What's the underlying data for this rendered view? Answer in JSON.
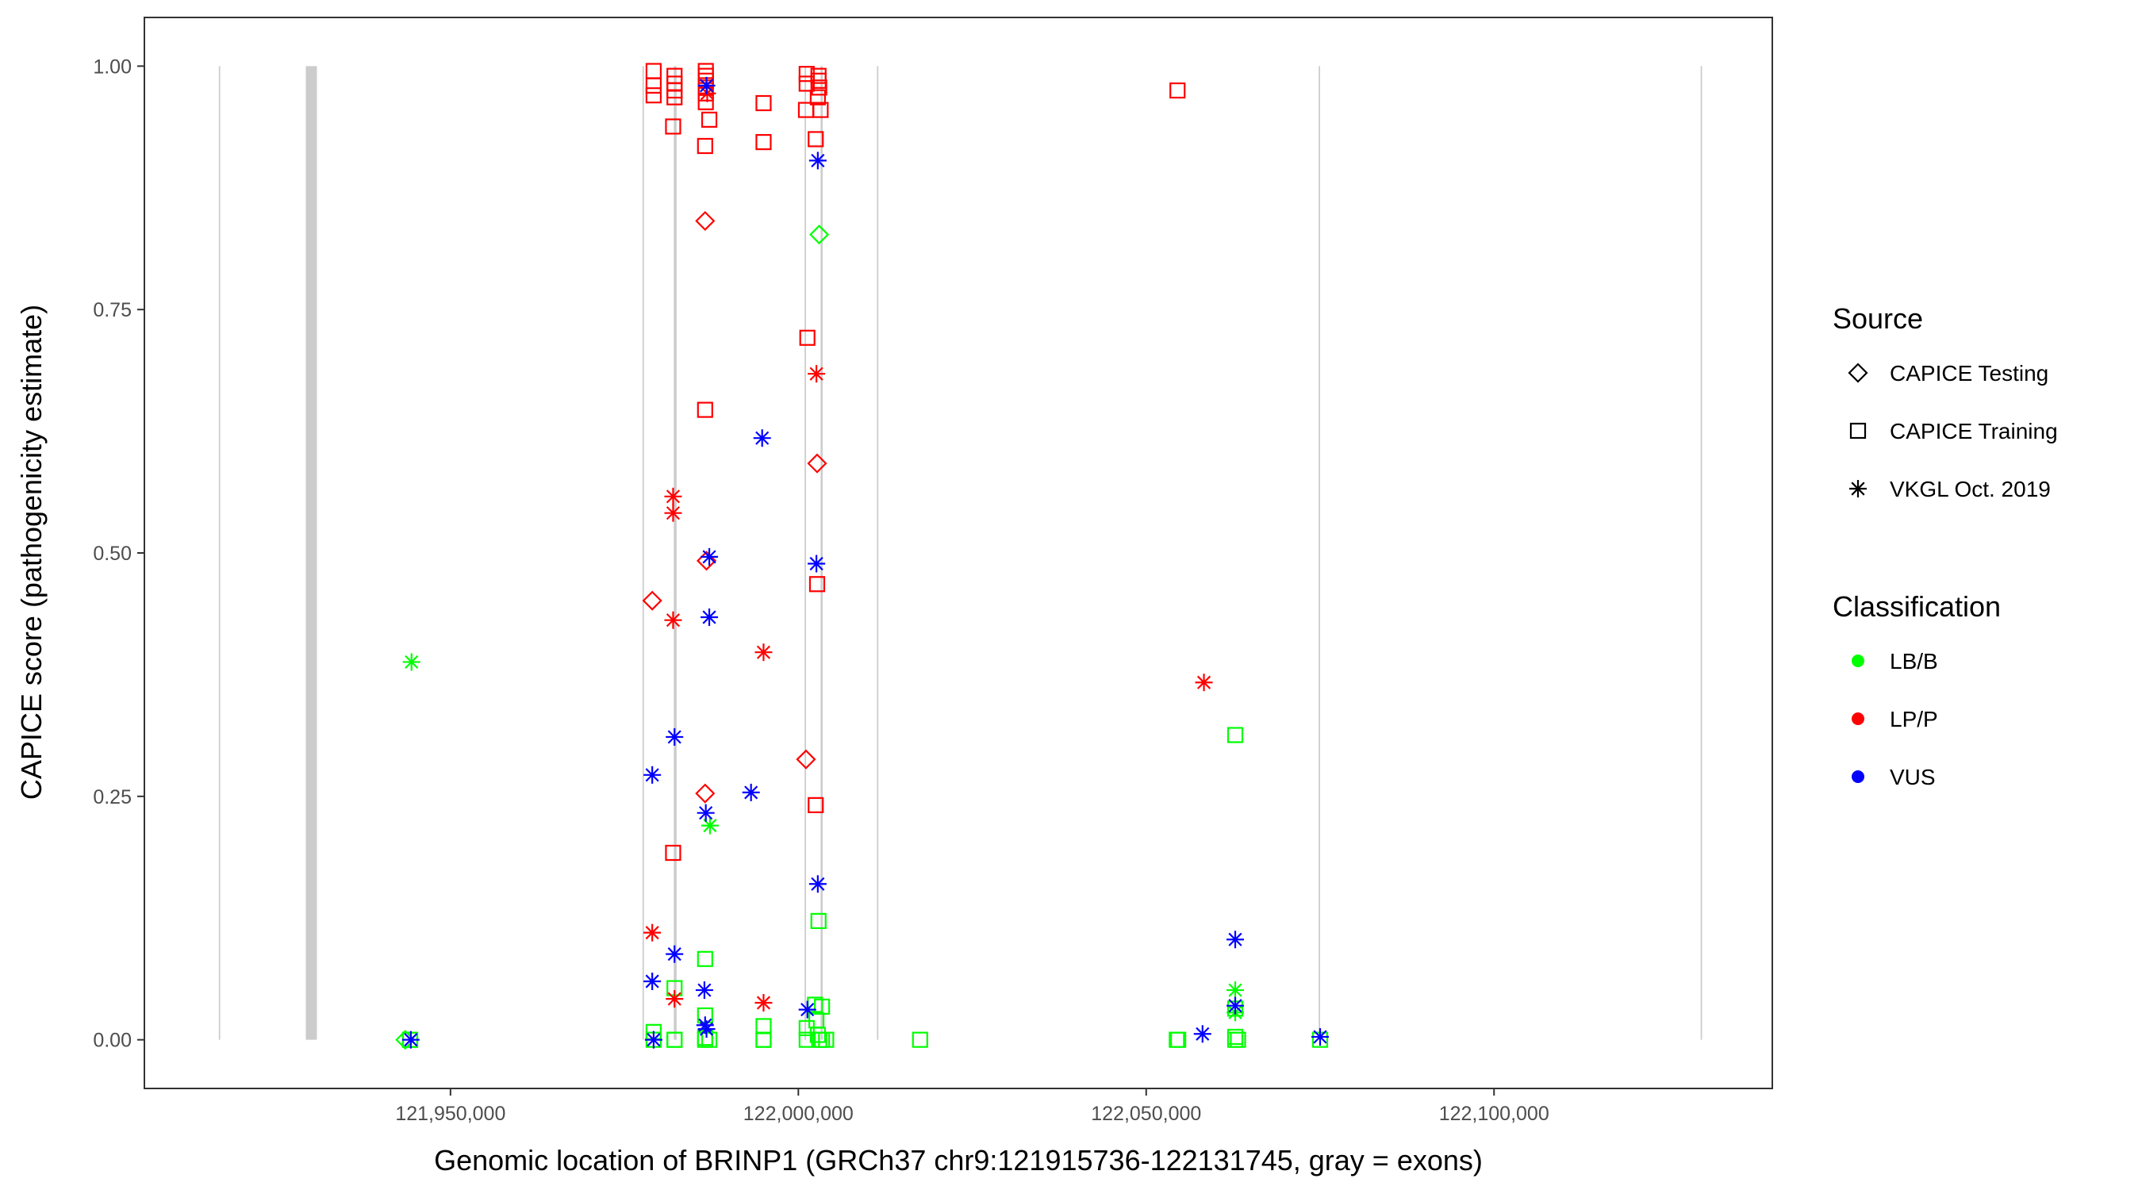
{
  "chart_data": {
    "type": "scatter",
    "xlabel": "Genomic location of BRINP1 (GRCh37 chr9:121915736-122131745, gray = exons)",
    "ylabel": "CAPICE score (pathogenicity estimate)",
    "xlim": [
      121906000,
      122140000
    ],
    "ylim": [
      -0.05,
      1.05
    ],
    "x_ticks": [
      121950000,
      122000000,
      122050000,
      122100000
    ],
    "x_tick_labels": [
      "121,950,000",
      "122,000,000",
      "122,050,000",
      "122,100,000"
    ],
    "y_ticks": [
      0,
      0.25,
      0.5,
      0.75,
      1.0
    ],
    "y_tick_labels": [
      "0.00",
      "0.25",
      "0.50",
      "0.75",
      "1.00"
    ],
    "grid": false,
    "exons": [
      {
        "start": 121916700,
        "end": 121916900
      },
      {
        "start": 121929200,
        "end": 121930800
      },
      {
        "start": 121977600,
        "end": 121977800
      },
      {
        "start": 121982100,
        "end": 121982500
      },
      {
        "start": 122000900,
        "end": 122001100
      },
      {
        "start": 122003200,
        "end": 122003500
      },
      {
        "start": 122011300,
        "end": 122011500
      },
      {
        "start": 122074800,
        "end": 122075000
      },
      {
        "start": 122129700,
        "end": 122129900
      }
    ],
    "legends": [
      {
        "title": "Source",
        "entries": [
          {
            "label": "CAPICE Testing",
            "shape": "diamond"
          },
          {
            "label": "CAPICE Training",
            "shape": "square"
          },
          {
            "label": "VKGL Oct. 2019",
            "shape": "asterisk"
          }
        ]
      },
      {
        "title": "Classification",
        "entries": [
          {
            "label": "LB/B",
            "color": "#00ff00"
          },
          {
            "label": "LP/P",
            "color": "#ff0000"
          },
          {
            "label": "VUS",
            "color": "#0000ff"
          }
        ]
      }
    ],
    "colors": {
      "LB/B": "#00ff00",
      "LP/P": "#ff0000",
      "VUS": "#0000ff",
      "exon": "#cccccc"
    },
    "series": [
      {
        "source": "CAPICE Training",
        "classification": "LP/P",
        "points": [
          [
            121979200,
            0.995
          ],
          [
            121979200,
            0.98
          ],
          [
            121979200,
            0.97
          ],
          [
            121982200,
            0.99
          ],
          [
            121982200,
            0.982
          ],
          [
            121982200,
            0.975
          ],
          [
            121982200,
            0.968
          ],
          [
            121982000,
            0.938
          ],
          [
            121982000,
            0.192
          ],
          [
            121986700,
            0.995
          ],
          [
            121986700,
            0.99
          ],
          [
            121986700,
            0.985
          ],
          [
            121986700,
            0.978
          ],
          [
            121986700,
            0.972
          ],
          [
            121986700,
            0.963
          ],
          [
            121987200,
            0.945
          ],
          [
            121986600,
            0.918
          ],
          [
            121986600,
            0.647
          ],
          [
            121995000,
            0.962
          ],
          [
            121995000,
            0.922
          ],
          [
            122001200,
            0.992
          ],
          [
            122001200,
            0.982
          ],
          [
            122001100,
            0.955
          ],
          [
            122001300,
            0.721
          ],
          [
            122002900,
            0.99
          ],
          [
            122002900,
            0.985
          ],
          [
            122003000,
            0.978
          ],
          [
            122002800,
            0.968
          ],
          [
            122003200,
            0.955
          ],
          [
            122002500,
            0.925
          ],
          [
            122002700,
            0.468
          ],
          [
            122002500,
            0.241
          ],
          [
            122054500,
            0.975
          ]
        ]
      },
      {
        "source": "CAPICE Training",
        "classification": "LB/B",
        "points": [
          [
            121944200,
            0.0
          ],
          [
            121944200,
            0.0
          ],
          [
            121979200,
            0.008
          ],
          [
            121979200,
            0.0
          ],
          [
            121982200,
            0.053
          ],
          [
            121982200,
            0.0
          ],
          [
            121982200,
            0.0
          ],
          [
            121986600,
            0.083
          ],
          [
            121986600,
            0.025
          ],
          [
            121986600,
            0.002
          ],
          [
            121986600,
            0.0
          ],
          [
            121987200,
            0.0
          ],
          [
            121995000,
            0.014
          ],
          [
            121995000,
            0.0
          ],
          [
            121995000,
            0.0
          ],
          [
            122001200,
            0.012
          ],
          [
            122001200,
            0.0
          ],
          [
            122002400,
            0.036
          ],
          [
            122003400,
            0.034
          ],
          [
            122002600,
            0.02
          ],
          [
            122002800,
            0.005
          ],
          [
            122003000,
            0.0
          ],
          [
            122003400,
            0.0
          ],
          [
            122004000,
            0.0
          ],
          [
            122002900,
            0.122
          ],
          [
            122017500,
            0.0
          ],
          [
            122054400,
            0.0
          ],
          [
            122054600,
            0.0
          ],
          [
            122062800,
            0.313
          ],
          [
            122062800,
            0.032
          ],
          [
            122062800,
            0.003
          ],
          [
            122062800,
            0.0
          ],
          [
            122063200,
            0.0
          ],
          [
            122075000,
            0.0
          ]
        ]
      },
      {
        "source": "CAPICE Testing",
        "classification": "LP/P",
        "points": [
          [
            121979000,
            0.451
          ],
          [
            121986600,
            0.841
          ],
          [
            121986800,
            0.492
          ],
          [
            121986600,
            0.253
          ],
          [
            122001100,
            0.288
          ],
          [
            122002700,
            0.592
          ]
        ]
      },
      {
        "source": "CAPICE Testing",
        "classification": "LB/B",
        "points": [
          [
            121943500,
            0.0
          ],
          [
            122003000,
            0.827
          ]
        ]
      },
      {
        "source": "VKGL Oct. 2019",
        "classification": "LB/B",
        "points": [
          [
            121944400,
            0.388
          ],
          [
            121987300,
            0.22
          ],
          [
            122062800,
            0.051
          ],
          [
            122062800,
            0.028
          ]
        ]
      },
      {
        "source": "VKGL Oct. 2019",
        "classification": "LP/P",
        "points": [
          [
            121982000,
            0.558
          ],
          [
            121982000,
            0.541
          ],
          [
            121982000,
            0.431
          ],
          [
            121979000,
            0.11
          ],
          [
            121982200,
            0.042
          ],
          [
            121986900,
            0.972
          ],
          [
            121995000,
            0.398
          ],
          [
            121995000,
            0.038
          ],
          [
            122002600,
            0.684
          ],
          [
            122058300,
            0.367
          ]
        ]
      },
      {
        "source": "VKGL Oct. 2019",
        "classification": "VUS",
        "points": [
          [
            121944300,
            0.0
          ],
          [
            121979000,
            0.272
          ],
          [
            121982200,
            0.311
          ],
          [
            121979000,
            0.06
          ],
          [
            121982200,
            0.088
          ],
          [
            121979200,
            0.0
          ],
          [
            121986800,
            0.98
          ],
          [
            121987200,
            0.496
          ],
          [
            121987200,
            0.434
          ],
          [
            121986700,
            0.233
          ],
          [
            121986500,
            0.051
          ],
          [
            121986600,
            0.015
          ],
          [
            121986800,
            0.011
          ],
          [
            121993200,
            0.254
          ],
          [
            121994800,
            0.618
          ],
          [
            122002800,
            0.903
          ],
          [
            122002600,
            0.489
          ],
          [
            122002800,
            0.16
          ],
          [
            122001300,
            0.031
          ],
          [
            122058100,
            0.006
          ],
          [
            122062800,
            0.103
          ],
          [
            122062800,
            0.035
          ],
          [
            122075000,
            0.003
          ]
        ]
      }
    ]
  }
}
